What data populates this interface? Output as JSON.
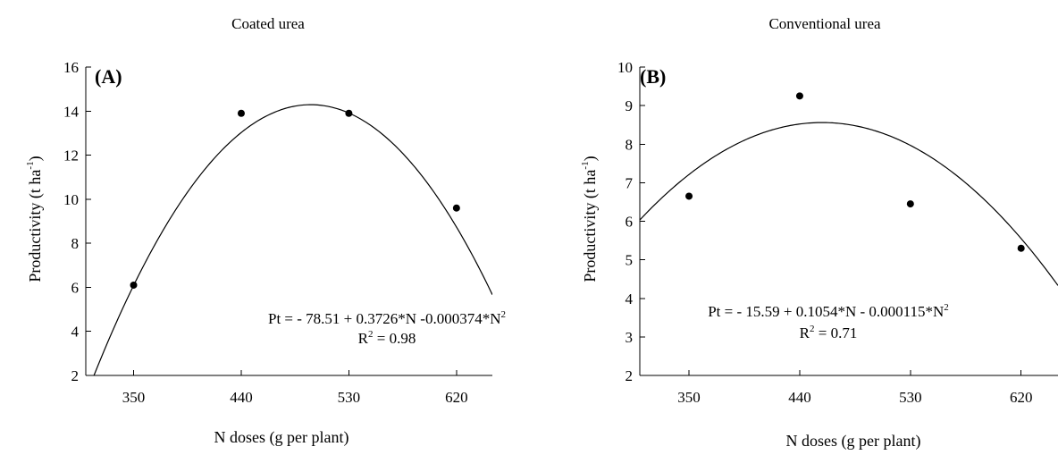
{
  "chart_data": [
    {
      "type": "scatter",
      "title": "Coated urea",
      "panel_label": "(A)",
      "xlabel": "N doses (g per plant)",
      "ylabel_main": "Productivity (t ha",
      "ylabel_sup": "-1",
      "ylabel_end": ")",
      "xlim": [
        310,
        650
      ],
      "ylim": [
        2,
        16
      ],
      "xticks": [
        350,
        440,
        530,
        620
      ],
      "yticks": [
        2,
        4,
        6,
        8,
        10,
        12,
        14,
        16
      ],
      "points": [
        {
          "x": 350,
          "y": 6.1
        },
        {
          "x": 440,
          "y": 13.9
        },
        {
          "x": 530,
          "y": 13.9
        },
        {
          "x": 620,
          "y": 9.6
        }
      ],
      "fit": {
        "a": -78.51,
        "b": 0.3726,
        "c": -0.000374
      },
      "equation_main": "Pt = - 78.51 + 0.3726*N -0.000374*N",
      "equation_sup": "2",
      "r2_prefix": "R",
      "r2_sup": "2",
      "r2_value": " = 0.98"
    },
    {
      "type": "scatter",
      "title": "Conventional urea",
      "panel_label": "(B)",
      "xlabel": "N doses (g per plant)",
      "ylabel_main": "Productivity (t ha",
      "ylabel_sup": "-1",
      "ylabel_end": ")",
      "xlim": [
        310,
        650
      ],
      "ylim": [
        2,
        10
      ],
      "xticks": [
        350,
        440,
        530,
        620
      ],
      "yticks": [
        2,
        3,
        4,
        5,
        6,
        7,
        8,
        9,
        10
      ],
      "points": [
        {
          "x": 350,
          "y": 6.65
        },
        {
          "x": 440,
          "y": 9.25
        },
        {
          "x": 530,
          "y": 6.45
        },
        {
          "x": 620,
          "y": 5.3
        }
      ],
      "fit": {
        "a": -15.59,
        "b": 0.1054,
        "c": -0.000115
      },
      "equation_main": "Pt = - 15.59 + 0.1054*N - 0.000115*N",
      "equation_sup": "2",
      "r2_prefix": "R",
      "r2_sup": "2",
      "r2_value": " = 0.71"
    }
  ]
}
